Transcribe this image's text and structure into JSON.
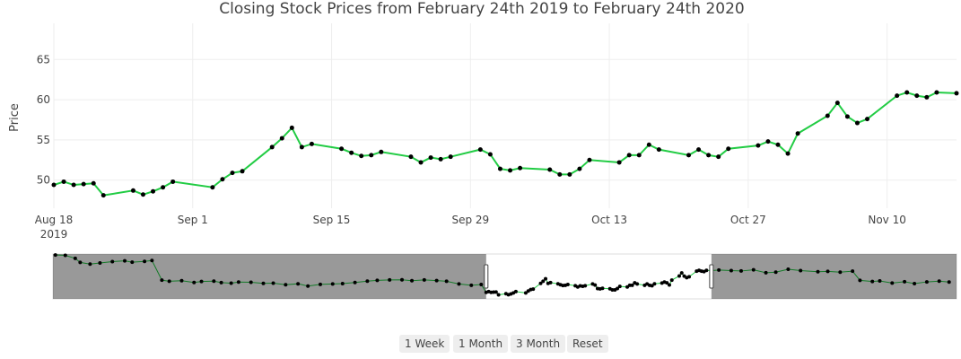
{
  "chart_data": {
    "type": "line",
    "title": "Closing Stock Prices from February 24th 2019 to February 24th 2020",
    "ylabel": "Price",
    "xlabel": "",
    "xlim": [
      "2019-08-18",
      "2019-11-17"
    ],
    "ylim": [
      46.5,
      69.5
    ],
    "yticks": [
      50,
      55,
      60,
      65
    ],
    "xticks": [
      {
        "date": "2019-08-18",
        "label": "Aug 18",
        "sublabel": "2019"
      },
      {
        "date": "2019-09-01",
        "label": "Sep 1",
        "sublabel": ""
      },
      {
        "date": "2019-09-15",
        "label": "Sep 15",
        "sublabel": ""
      },
      {
        "date": "2019-09-29",
        "label": "Sep 29",
        "sublabel": ""
      },
      {
        "date": "2019-10-13",
        "label": "Oct 13",
        "sublabel": ""
      },
      {
        "date": "2019-10-27",
        "label": "Oct 27",
        "sublabel": ""
      },
      {
        "date": "2019-11-10",
        "label": "Nov 10",
        "sublabel": ""
      }
    ],
    "line_color": "#22cc44",
    "marker_color": "#000000",
    "grid": true,
    "series": [
      {
        "x": [
          "2019-08-18",
          "2019-08-19",
          "2019-08-20",
          "2019-08-21",
          "2019-08-22",
          "2019-08-23",
          "2019-08-26",
          "2019-08-27",
          "2019-08-28",
          "2019-08-29",
          "2019-08-30",
          "2019-09-03",
          "2019-09-04",
          "2019-09-05",
          "2019-09-06",
          "2019-09-09",
          "2019-09-10",
          "2019-09-11",
          "2019-09-12",
          "2019-09-13",
          "2019-09-16",
          "2019-09-17",
          "2019-09-18",
          "2019-09-19",
          "2019-09-20",
          "2019-09-23",
          "2019-09-24",
          "2019-09-25",
          "2019-09-26",
          "2019-09-27",
          "2019-09-30",
          "2019-10-01",
          "2019-10-02",
          "2019-10-03",
          "2019-10-04",
          "2019-10-07",
          "2019-10-08",
          "2019-10-09",
          "2019-10-10",
          "2019-10-11",
          "2019-10-14",
          "2019-10-15",
          "2019-10-16",
          "2019-10-17",
          "2019-10-18",
          "2019-10-21",
          "2019-10-22",
          "2019-10-23",
          "2019-10-24",
          "2019-10-25",
          "2019-10-28",
          "2019-10-29",
          "2019-10-30",
          "2019-10-31",
          "2019-11-01",
          "2019-11-04",
          "2019-11-05",
          "2019-11-06",
          "2019-11-07",
          "2019-11-08",
          "2019-11-11",
          "2019-11-12",
          "2019-11-13",
          "2019-11-14",
          "2019-11-15",
          "2019-11-17"
        ],
        "y": [
          49.4,
          49.8,
          49.4,
          49.5,
          49.6,
          48.1,
          48.7,
          48.2,
          48.6,
          49.1,
          49.8,
          49.1,
          50.1,
          50.9,
          51.1,
          54.1,
          55.2,
          56.5,
          54.1,
          54.5,
          53.9,
          53.4,
          53.0,
          53.1,
          53.5,
          52.9,
          52.2,
          52.8,
          52.6,
          52.9,
          53.8,
          53.2,
          51.4,
          51.2,
          51.5,
          51.3,
          50.7,
          50.7,
          51.4,
          52.5,
          52.2,
          53.1,
          53.1,
          54.4,
          53.8,
          53.1,
          53.8,
          53.1,
          52.9,
          53.9,
          54.3,
          54.8,
          54.4,
          53.3,
          55.8,
          58.0,
          59.6,
          57.9,
          57.1,
          57.6,
          60.5,
          60.9,
          60.5,
          60.3,
          60.9,
          60.8
        ]
      }
    ],
    "rangeslider": {
      "xlim": [
        "2019-02-24",
        "2020-02-24"
      ],
      "selected": [
        "2019-08-18",
        "2019-11-17"
      ],
      "ylim": [
        46,
        69.5
      ],
      "x": [
        "2019-02-25",
        "2019-03-01",
        "2019-03-05",
        "2019-03-07",
        "2019-03-11",
        "2019-03-15",
        "2019-03-20",
        "2019-03-25",
        "2019-03-28",
        "2019-04-02",
        "2019-04-05",
        "2019-04-09",
        "2019-04-12",
        "2019-04-17",
        "2019-04-22",
        "2019-04-25",
        "2019-04-30",
        "2019-05-03",
        "2019-05-07",
        "2019-05-10",
        "2019-05-15",
        "2019-05-20",
        "2019-05-24",
        "2019-05-29",
        "2019-06-03",
        "2019-06-07",
        "2019-06-12",
        "2019-06-17",
        "2019-06-21",
        "2019-06-26",
        "2019-07-01",
        "2019-07-05",
        "2019-07-10",
        "2019-07-15",
        "2019-07-19",
        "2019-07-24",
        "2019-07-29",
        "2019-08-02",
        "2019-08-07",
        "2019-08-12",
        "2019-08-16",
        "2019-11-20",
        "2019-11-25",
        "2019-11-29",
        "2019-12-04",
        "2019-12-09",
        "2019-12-13",
        "2019-12-18",
        "2019-12-23",
        "2019-12-30",
        "2020-01-03",
        "2020-01-08",
        "2020-01-13",
        "2020-01-16",
        "2020-01-21",
        "2020-01-24",
        "2020-01-29",
        "2020-02-03",
        "2020-02-07",
        "2020-02-12",
        "2020-02-17",
        "2020-02-21"
      ],
      "y": [
        69,
        68.8,
        67.2,
        65.1,
        64.2,
        64.8,
        65.5,
        65.9,
        65.2,
        65.6,
        66.1,
        55.8,
        55.2,
        55.5,
        54.6,
        55.1,
        55.3,
        54.5,
        54.2,
        54.8,
        54.7,
        54.1,
        54.2,
        53.4,
        53.9,
        52.7,
        53.6,
        53.8,
        54.0,
        54.6,
        55.3,
        55.7,
        55.9,
        56.0,
        55.5,
        55.9,
        55.6,
        55.2,
        53.8,
        53.1,
        53.5,
        61.1,
        60.8,
        60.6,
        61.2,
        59.7,
        60.0,
        61.5,
        60.8,
        60.2,
        60.4,
        60.0,
        60.5,
        55.7,
        55.1,
        55.4,
        54.3,
        55.0,
        54.0,
        54.9,
        55.3,
        54.8
      ]
    }
  },
  "buttons": {
    "week": "1 Week",
    "month": "1 Month",
    "three_month": "3 Month",
    "reset": "Reset"
  }
}
